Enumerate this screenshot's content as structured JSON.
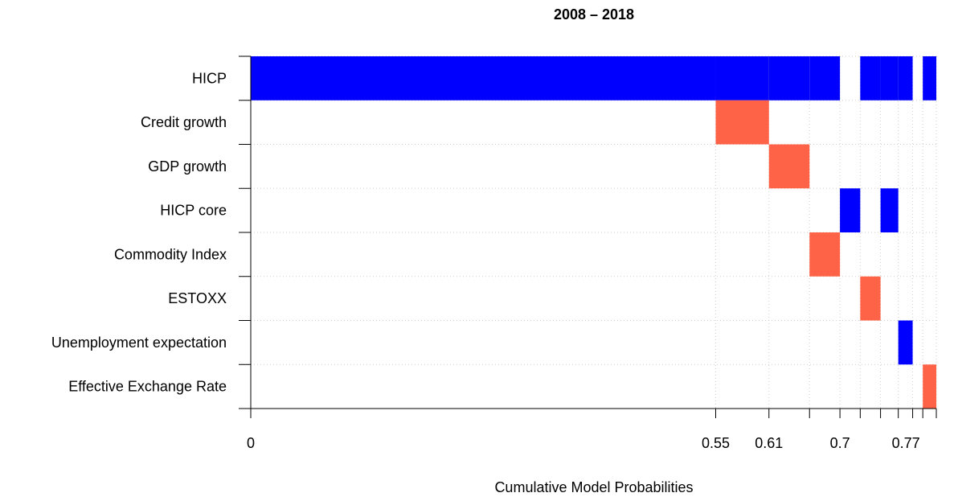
{
  "chart_data": {
    "type": "heatmap",
    "title": "2008 – 2018",
    "xlabel": "Cumulative Model Probabilities",
    "ylabel": "",
    "xlim": [
      0,
      0.811
    ],
    "rows": [
      "HICP",
      "Credit growth",
      "GDP growth",
      "HICP core",
      "Commodity Index",
      "ESTOXX",
      "Unemployment expectation",
      "Effective Exchange Rate"
    ],
    "model_boundaries": [
      0,
      0.55,
      0.613,
      0.661,
      0.697,
      0.721,
      0.745,
      0.766,
      0.783,
      0.795,
      0.811
    ],
    "x_tick_labels": [
      {
        "value": 0,
        "label": "0"
      },
      {
        "value": 0.55,
        "label": "0.55"
      },
      {
        "value": 0.613,
        "label": "0.61"
      },
      {
        "value": 0.697,
        "label": "0.7"
      },
      {
        "value": 0.775,
        "label": "0.77"
      }
    ],
    "inclusion": [
      [
        1,
        1,
        1,
        1,
        0,
        1,
        1,
        1,
        0,
        1
      ],
      [
        0,
        1,
        0,
        0,
        0,
        0,
        0,
        0,
        0,
        0
      ],
      [
        0,
        0,
        1,
        0,
        0,
        0,
        0,
        0,
        0,
        0
      ],
      [
        0,
        0,
        0,
        0,
        1,
        0,
        1,
        0,
        0,
        0
      ],
      [
        0,
        0,
        0,
        1,
        0,
        0,
        0,
        0,
        0,
        0
      ],
      [
        0,
        0,
        0,
        0,
        0,
        1,
        0,
        0,
        0,
        0
      ],
      [
        0,
        0,
        0,
        0,
        0,
        0,
        0,
        1,
        0,
        0
      ],
      [
        0,
        0,
        0,
        0,
        0,
        0,
        0,
        0,
        0,
        1
      ]
    ],
    "colors": {
      "positive": "#0000ff",
      "negative": "#ff6347",
      "grid": "#cfcfcf"
    },
    "sign_by_row": [
      "positive",
      "negative",
      "negative",
      "positive",
      "negative",
      "negative",
      "positive",
      "negative"
    ],
    "grid": true
  }
}
